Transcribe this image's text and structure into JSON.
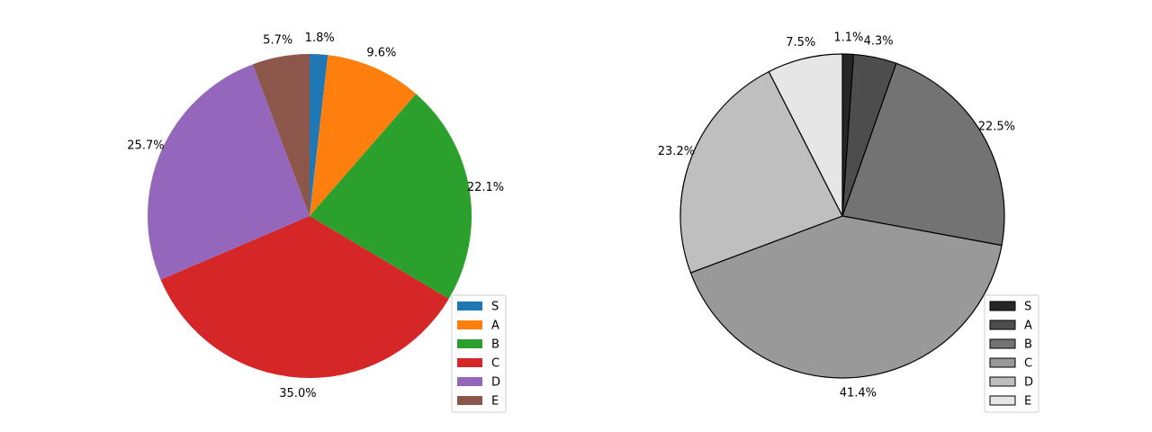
{
  "chart_data": [
    {
      "type": "pie",
      "categories": [
        "S",
        "A",
        "B",
        "C",
        "D",
        "E"
      ],
      "values": [
        1.8,
        9.6,
        22.1,
        35.0,
        25.7,
        5.7
      ],
      "value_labels": [
        "1.8%",
        "9.6%",
        "22.1%",
        "35.0%",
        "25.7%",
        "5.7%"
      ],
      "colors": [
        "#1f77b4",
        "#ff7f0e",
        "#2ca02c",
        "#d62728",
        "#9467bd",
        "#8c564b"
      ],
      "legend": "lower right"
    },
    {
      "type": "pie",
      "categories": [
        "S",
        "A",
        "B",
        "C",
        "D",
        "E"
      ],
      "values": [
        1.1,
        4.3,
        22.5,
        41.4,
        23.2,
        7.5
      ],
      "value_labels": [
        "1.1%",
        "4.3%",
        "22.5%",
        "41.4%",
        "23.2%",
        "7.5%"
      ],
      "colors": [
        "#262626",
        "#4d4d4d",
        "#737373",
        "#999999",
        "#bfbfbf",
        "#e6e6e6"
      ],
      "edgecolor": "#000000",
      "legend": "lower right"
    }
  ]
}
